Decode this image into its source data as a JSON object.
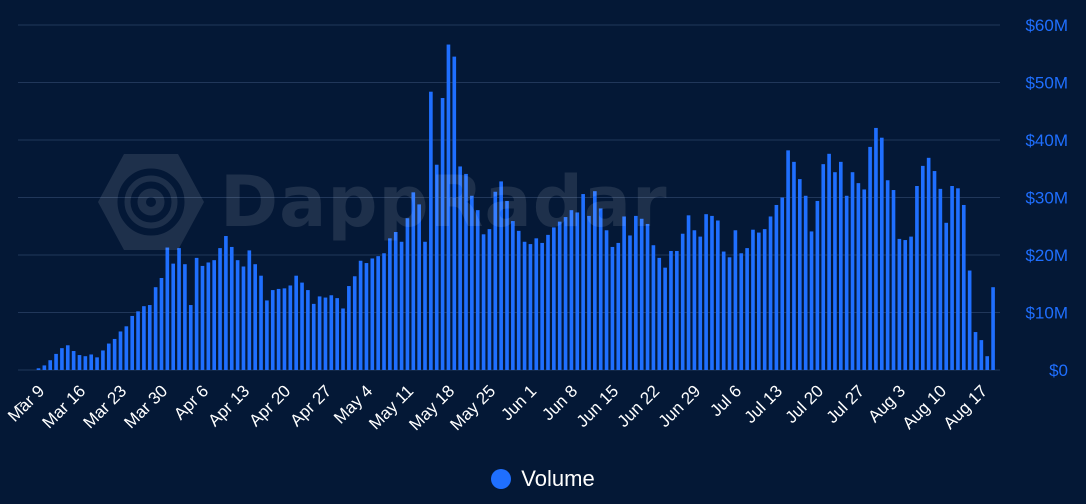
{
  "chart_data": {
    "type": "bar",
    "series": [
      {
        "name": "Volume",
        "color": "#1f6fff"
      }
    ],
    "yaxis": {
      "position": "right",
      "min": 0,
      "max": 60,
      "ticks": [
        0,
        10,
        20,
        30,
        40,
        50,
        60
      ],
      "tick_labels": [
        "$0",
        "$10M",
        "$20M",
        "$30M",
        "$40M",
        "$50M",
        "$60M"
      ],
      "unit": "$M"
    },
    "xaxis": {
      "tick_labels": [
        "Mar 9",
        "Mar 16",
        "Mar 23",
        "Mar 30",
        "Apr 6",
        "Apr 13",
        "Apr 20",
        "Apr 27",
        "May 4",
        "May 11",
        "May 18",
        "May 25",
        "Jun 1",
        "Jun 8",
        "Jun 15",
        "Jun 22",
        "Jun 29",
        "Jul 6",
        "Jul 13",
        "Jul 20",
        "Jul 27",
        "Aug 3",
        "Aug 10",
        "Aug 17"
      ],
      "tick_start_index": 3,
      "tick_every": 7,
      "rotation_deg": -45
    },
    "grid": true,
    "values": [
      0,
      0,
      0,
      0.3,
      0.8,
      1.7,
      2.8,
      3.8,
      4.3,
      3.3,
      2.6,
      2.4,
      2.7,
      2.2,
      3.4,
      4.6,
      5.4,
      6.7,
      7.6,
      9.4,
      10.2,
      11.1,
      11.3,
      14.4,
      16,
      21.3,
      18.5,
      21.2,
      18.4,
      11.3,
      19.5,
      18.1,
      18.7,
      19.1,
      21.2,
      23.3,
      21.4,
      19.1,
      18,
      20.8,
      18.4,
      16.4,
      12.1,
      13.9,
      14.1,
      14.2,
      14.7,
      16.4,
      15.2,
      13.9,
      11.5,
      12.8,
      12.6,
      13,
      12.5,
      10.7,
      14.6,
      16.3,
      19,
      18.6,
      19.4,
      19.8,
      20.3,
      22.9,
      24,
      22.3,
      26.4,
      30.9,
      28.8,
      22.3,
      48.4,
      35.7,
      47.3,
      56.6,
      54.5,
      35.4,
      34.1,
      30.3,
      27.8,
      23.6,
      24.5,
      31,
      32.8,
      29.4,
      25.9,
      24.2,
      22.3,
      21.9,
      22.9,
      22.1,
      23.5,
      24.8,
      25.8,
      26.6,
      27.8,
      27.4,
      30.6,
      26.8,
      31.1,
      28.1,
      24.3,
      21.4,
      22.1,
      26.7,
      23.4,
      26.8,
      26.3,
      25.4,
      21.7,
      19.5,
      17.8,
      20.7,
      20.7,
      23.7,
      26.9,
      24.3,
      23.2,
      27.1,
      26.8,
      26,
      20.6,
      19.6,
      24.3,
      20.3,
      21.2,
      24.4,
      23.9,
      24.5,
      26.7,
      28.7,
      30,
      38.2,
      36.2,
      33.2,
      30.3,
      24.1,
      29.4,
      35.8,
      37.6,
      34.4,
      36.2,
      30.3,
      34.4,
      32.5,
      31.4,
      38.8,
      42.1,
      40.4,
      33,
      31.3,
      22.8,
      22.6,
      23.2,
      32,
      35.5,
      36.9,
      34.6,
      31.5,
      25.6,
      32,
      31.6,
      28.7,
      17.3,
      6.6,
      5.2,
      2.4,
      14.4
    ]
  },
  "legend": {
    "label": "Volume"
  },
  "watermark": {
    "text": "DappRadar",
    "icon": "dappradar-logo-icon"
  }
}
